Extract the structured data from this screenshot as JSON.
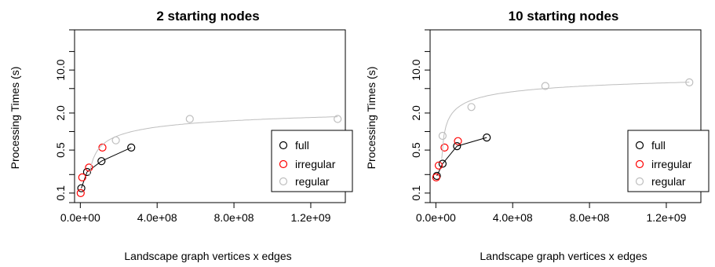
{
  "colors": {
    "full": "#000000",
    "irregular": "#ff0000",
    "regular": "#bebebe"
  },
  "chart_data": [
    {
      "type": "scatter",
      "title": "2 starting nodes",
      "xlabel": "Landscape graph vertices x edges",
      "ylabel": "Processing Times (s)",
      "x_scale": "linear",
      "y_scale": "log",
      "xlim": [
        -30000000.0,
        1380000000.0
      ],
      "ylim": [
        0.07,
        45
      ],
      "x_ticks": [
        0,
        400000000,
        800000000,
        1200000000
      ],
      "x_tick_labels": [
        "0.0e+00",
        "4.0e+08",
        "8.0e+08",
        "1.2e+09"
      ],
      "y_ticks": [
        0.1,
        0.5,
        2.0,
        10.0
      ],
      "y_tick_labels": [
        "0.1",
        "0.5",
        "2.0",
        "10.0"
      ],
      "grid": false,
      "legend_position": "bottom-right",
      "series": [
        {
          "name": "full",
          "color": "#000000",
          "x": [
            5000000,
            35000000,
            110000000,
            265000000
          ],
          "y": [
            0.12,
            0.22,
            0.33,
            0.55
          ],
          "fit": "line"
        },
        {
          "name": "irregular",
          "color": "#ff0000",
          "x": [
            2000000,
            10000000,
            45000000,
            115000000
          ],
          "y": [
            0.1,
            0.18,
            0.26,
            0.55
          ],
          "fit": "none"
        },
        {
          "name": "regular",
          "color": "#bebebe",
          "x": [
            185000000,
            570000000,
            1340000000
          ],
          "y": [
            0.72,
            1.6,
            1.6
          ],
          "fit": "log"
        }
      ]
    },
    {
      "type": "scatter",
      "title": "10 starting nodes",
      "xlabel": "Landscape graph vertices x edges",
      "ylabel": "Processing Times (s)",
      "x_scale": "linear",
      "y_scale": "log",
      "xlim": [
        -30000000.0,
        1380000000.0
      ],
      "ylim": [
        0.07,
        45
      ],
      "x_ticks": [
        0,
        400000000,
        800000000,
        1200000000
      ],
      "x_tick_labels": [
        "0.0e+00",
        "4.0e+08",
        "8.0e+08",
        "1.2e+09"
      ],
      "y_ticks": [
        0.1,
        0.5,
        2.0,
        10.0
      ],
      "y_tick_labels": [
        "0.1",
        "0.5",
        "2.0",
        "10.0"
      ],
      "grid": false,
      "legend_position": "bottom-right",
      "series": [
        {
          "name": "full",
          "color": "#000000",
          "x": [
            5000000,
            35000000,
            110000000,
            265000000
          ],
          "y": [
            0.19,
            0.3,
            0.58,
            0.8
          ],
          "fit": "line"
        },
        {
          "name": "irregular",
          "color": "#ff0000",
          "x": [
            2000000,
            15000000,
            45000000,
            115000000
          ],
          "y": [
            0.18,
            0.28,
            0.55,
            0.7
          ],
          "fit": "none"
        },
        {
          "name": "regular",
          "color": "#bebebe",
          "x": [
            35000000,
            185000000,
            570000000,
            1320000000
          ],
          "y": [
            0.85,
            2.5,
            5.5,
            6.3
          ],
          "fit": "log"
        }
      ]
    }
  ]
}
